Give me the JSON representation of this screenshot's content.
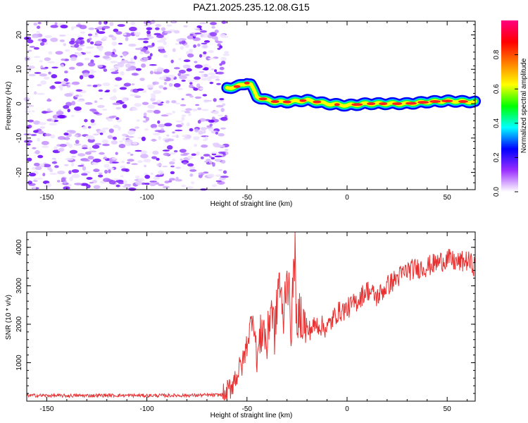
{
  "title": "PAZ1.2025.235.12.08.G15",
  "chart_data": [
    {
      "type": "heatmap",
      "name": "spectrogram",
      "xlabel": "Height of straight line (km)",
      "ylabel": "Frequency (Hz)",
      "xlim": [
        -160,
        64
      ],
      "ylim": [
        -25,
        24
      ],
      "x_ticks": [
        -150,
        -100,
        -50,
        0,
        50
      ],
      "x_tick_labels": [
        "-150",
        "-100",
        "-50",
        "0",
        "50"
      ],
      "y_ticks": [
        -20,
        -10,
        0,
        10,
        20
      ],
      "y_tick_labels": [
        "-20",
        "-10",
        "0",
        "10",
        "20"
      ],
      "noise_region_x": [
        -160,
        -60
      ],
      "ridge": {
        "x": [
          -60,
          -55,
          -50,
          -48,
          -45,
          -40,
          -35,
          -30,
          -20,
          -10,
          0,
          10,
          20,
          30,
          40,
          50,
          64
        ],
        "y": [
          4.5,
          5,
          6,
          5.5,
          2,
          1,
          0.5,
          0.5,
          1,
          0,
          -0.5,
          0,
          0,
          0,
          0.5,
          0.8,
          0.5
        ]
      }
    },
    {
      "type": "line",
      "name": "snr",
      "xlabel": "Height of straight line (km)",
      "ylabel": "SNR (10 * v/v)",
      "xlim": [
        -160,
        64
      ],
      "ylim": [
        0,
        4400
      ],
      "x_ticks": [
        -150,
        -100,
        -50,
        0,
        50
      ],
      "x_tick_labels": [
        "-150",
        "-100",
        "-50",
        "0",
        "50"
      ],
      "y_ticks": [
        1000,
        2000,
        3000,
        4000
      ],
      "y_tick_labels": [
        "1000",
        "2000",
        "3000",
        "4000"
      ],
      "series": [
        {
          "name": "SNR",
          "color": "#e83030",
          "x": [
            -160,
            -140,
            -120,
            -100,
            -80,
            -64,
            -60,
            -56,
            -52,
            -50,
            -47,
            -45,
            -42,
            -40,
            -38,
            -36,
            -34,
            -32,
            -30,
            -28,
            -26,
            -25,
            -24,
            -22,
            -20,
            -15,
            -10,
            -5,
            0,
            5,
            10,
            15,
            20,
            25,
            30,
            35,
            40,
            45,
            50,
            55,
            60,
            64
          ],
          "y": [
            150,
            140,
            150,
            145,
            150,
            160,
            200,
            600,
            1000,
            1500,
            2300,
            1100,
            2000,
            1400,
            2600,
            1700,
            3300,
            2000,
            3500,
            1900,
            4000,
            1200,
            2400,
            2100,
            1800,
            2000,
            1900,
            2300,
            2400,
            2600,
            2900,
            2700,
            3000,
            3200,
            3400,
            3450,
            3500,
            3600,
            3700,
            3600,
            3650,
            3500
          ]
        }
      ]
    }
  ],
  "colorbar": {
    "label": "Normalized spectral amplitude",
    "range": [
      0,
      1
    ],
    "ticks": [
      0.0,
      0.2,
      0.4,
      0.6,
      0.8
    ],
    "tick_labels": [
      "0.0",
      "0.2",
      "0.4",
      "0.6",
      "0.8"
    ],
    "colors": [
      "#ffffff",
      "#9b30ff",
      "#0000ff",
      "#00ffff",
      "#00ff00",
      "#ffff00",
      "#ff8000",
      "#ff0000",
      "#ff0080"
    ]
  }
}
